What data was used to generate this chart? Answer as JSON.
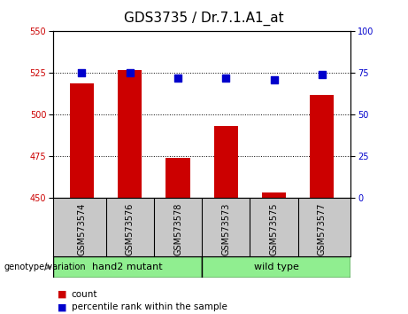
{
  "title": "GDS3735 / Dr.7.1.A1_at",
  "samples": [
    "GSM573574",
    "GSM573576",
    "GSM573578",
    "GSM573573",
    "GSM573575",
    "GSM573577"
  ],
  "count_values": [
    519,
    527,
    474,
    493,
    453,
    512
  ],
  "percentile_values": [
    75,
    75,
    72,
    72,
    71,
    74
  ],
  "ylim_left": [
    450,
    550
  ],
  "ylim_right": [
    0,
    100
  ],
  "yticks_left": [
    450,
    475,
    500,
    525,
    550
  ],
  "yticks_right": [
    0,
    25,
    50,
    75,
    100
  ],
  "baseline": 450,
  "group1_label": "hand2 mutant",
  "group2_label": "wild type",
  "group_color": "#90EE90",
  "bar_color": "#CC0000",
  "dot_color": "#0000CC",
  "bar_width": 0.5,
  "dot_size": 30,
  "xticklabel_bg": "#C8C8C8",
  "group_label_text": "genotype/variation",
  "legend_count": "count",
  "legend_percentile": "percentile rank within the sample",
  "title_fontsize": 11,
  "tick_fontsize": 7
}
